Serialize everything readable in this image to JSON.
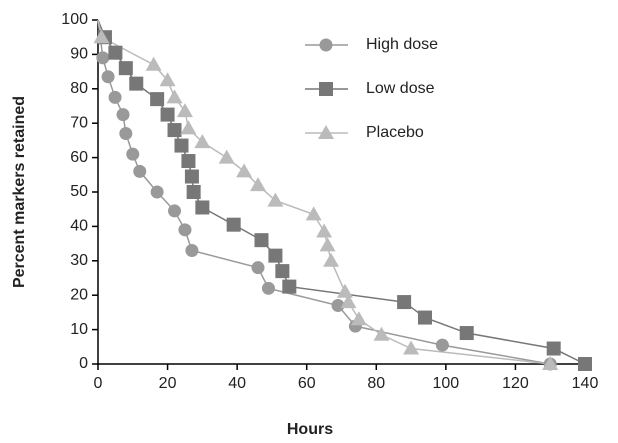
{
  "chart_data": {
    "type": "line",
    "x_label": "Hours",
    "y_label": "Percent markers retained",
    "xlim": [
      0,
      140
    ],
    "xticks": [
      0,
      20,
      40,
      60,
      80,
      100,
      120,
      140
    ],
    "ylim": [
      0,
      100
    ],
    "yticks": [
      0,
      10,
      20,
      30,
      40,
      50,
      60,
      70,
      80,
      90,
      100
    ],
    "legend": "top",
    "series": [
      {
        "name": "High dose",
        "color": "#999999",
        "marker": "circle",
        "x": [
          0,
          1.4,
          2.9,
          4.9,
          7.2,
          8,
          10,
          12,
          17,
          22,
          25,
          27,
          46,
          49,
          69,
          74,
          99,
          130
        ],
        "values": [
          100,
          89,
          83.5,
          77.5,
          72.5,
          67,
          61,
          56,
          50,
          44.5,
          39,
          33,
          28,
          22,
          17,
          11,
          5.5,
          0
        ]
      },
      {
        "name": "Low dose",
        "color": "#777777",
        "marker": "square",
        "x": [
          0,
          2,
          5,
          8,
          11,
          17,
          20,
          22,
          24,
          26,
          27,
          27.5,
          30,
          39,
          47,
          51,
          53,
          55,
          88,
          94,
          106,
          131,
          140
        ],
        "values": [
          100,
          95,
          90.5,
          86,
          81.5,
          77,
          72.5,
          68,
          63.5,
          59,
          54.5,
          50,
          45.5,
          40.5,
          36,
          31.5,
          27,
          22.5,
          18,
          13.5,
          9,
          4.5,
          0
        ]
      },
      {
        "name": "Placebo",
        "color": "#bbbbbb",
        "marker": "triangle",
        "x": [
          0,
          1,
          16,
          20,
          22,
          25,
          26,
          30,
          37,
          42,
          46,
          51,
          62,
          65,
          66,
          67,
          71,
          72,
          75,
          81.5,
          90,
          130
        ],
        "values": [
          100,
          95,
          87,
          82.5,
          77.5,
          73.5,
          68.5,
          64.5,
          60,
          56,
          52,
          47.5,
          43.5,
          38.5,
          34.5,
          30,
          21,
          18,
          13,
          8.5,
          4.5,
          0
        ]
      }
    ]
  }
}
